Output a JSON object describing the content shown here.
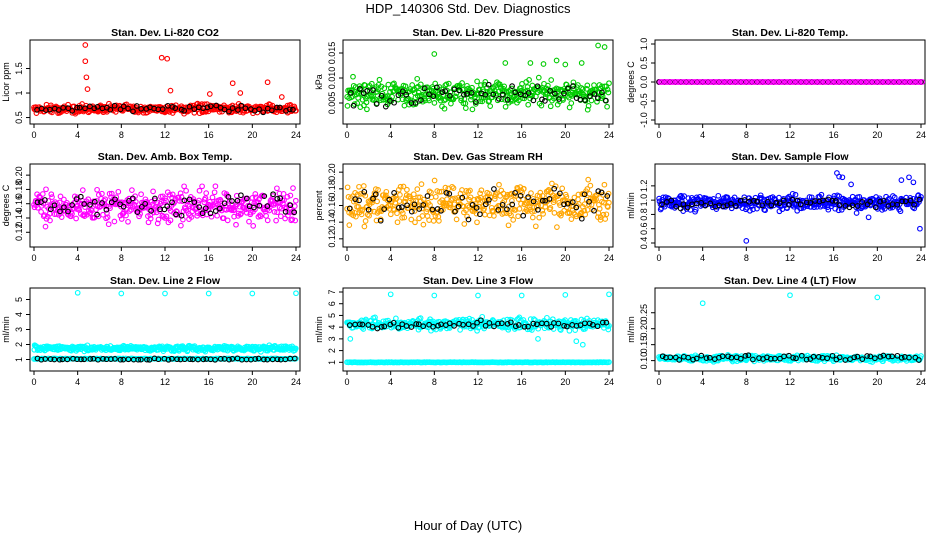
{
  "title": "HDP_140306  Std. Dev. Diagnostics",
  "xlabel": "Hour of Day (UTC)",
  "colors": {
    "secondary": "#000000",
    "axis": "#000000"
  },
  "chart_data": [
    {
      "type": "scatter",
      "title": "Stan. Dev. Li-820 CO2",
      "ylabel": "Licor ppm",
      "color": "#ff0000",
      "xlim": [
        0,
        24
      ],
      "ylim": [
        0.45,
        2.0
      ],
      "yticks": [
        0.5,
        1.0,
        1.5
      ],
      "ytick_labels": [
        "0.5",
        "1",
        "1.5"
      ],
      "xticks": [
        0,
        4,
        8,
        12,
        16,
        20,
        24
      ],
      "band": [
        0.55,
        0.8,
        0.68
      ],
      "secondary_band": [
        0.6,
        0.75,
        0.67
      ],
      "outliers": [
        [
          4.7,
          1.98
        ],
        [
          4.7,
          1.65
        ],
        [
          4.8,
          1.32
        ],
        [
          4.9,
          1.08
        ],
        [
          11.7,
          1.72
        ],
        [
          12.2,
          1.7
        ],
        [
          12.5,
          1.05
        ],
        [
          18.2,
          1.2
        ],
        [
          18.9,
          1.0
        ],
        [
          21.4,
          1.22
        ],
        [
          16.1,
          0.98
        ],
        [
          22.7,
          0.92
        ]
      ]
    },
    {
      "type": "scatter",
      "title": "Stan. Dev. Li-820 Pressure",
      "ylabel": "kPa",
      "color": "#00cc00",
      "xlim": [
        0,
        24
      ],
      "ylim": [
        0.0016,
        0.0168
      ],
      "yticks": [
        0.005,
        0.01,
        0.015
      ],
      "ytick_labels": [
        "0.005",
        "0.010",
        "0.015"
      ],
      "xticks": [
        0,
        4,
        8,
        12,
        16,
        20,
        24
      ],
      "band": [
        0.003,
        0.0105,
        0.0068
      ],
      "secondary_band": [
        0.004,
        0.009,
        0.0065
      ],
      "outliers": [
        [
          8.0,
          0.0148
        ],
        [
          23.0,
          0.0165
        ],
        [
          23.6,
          0.0162
        ],
        [
          14.5,
          0.013
        ],
        [
          16.8,
          0.013
        ],
        [
          18.0,
          0.0128
        ],
        [
          20.0,
          0.0127
        ],
        [
          21.5,
          0.013
        ],
        [
          19.2,
          0.0135
        ]
      ]
    },
    {
      "type": "scatter",
      "title": "Stan. Dev. Li-820 Temp.",
      "ylabel": "degrees C",
      "color": "#ff00ff",
      "xlim": [
        0,
        24
      ],
      "ylim": [
        -1.0,
        1.0
      ],
      "yticks": [
        -1.0,
        -0.5,
        0.0,
        0.5,
        1.0
      ],
      "ytick_labels": [
        "-1.0",
        "-0.5",
        "0.0",
        "0.5",
        "1.0"
      ],
      "xticks": [
        0,
        4,
        8,
        12,
        16,
        20,
        24
      ],
      "constant": 0.0
    },
    {
      "type": "scatter",
      "title": "Stan. Dev. Amb. Box Temp.",
      "ylabel": "degrees C",
      "color": "#ff00ff",
      "xlim": [
        0,
        24
      ],
      "ylim": [
        0.105,
        0.21
      ],
      "yticks": [
        0.12,
        0.14,
        0.16,
        0.18,
        0.2
      ],
      "ytick_labels": [
        "0.12",
        "0.14",
        "0.16",
        "0.18",
        "0.20"
      ],
      "xticks": [
        0,
        4,
        8,
        12,
        16,
        20,
        24
      ],
      "band": [
        0.125,
        0.19,
        0.155
      ],
      "secondary_band": [
        0.14,
        0.175,
        0.157
      ],
      "outliers": []
    },
    {
      "type": "scatter",
      "title": "Stan. Dev. Gas Stream RH",
      "ylabel": "percent",
      "color": "#ffa500",
      "xlim": [
        0,
        24
      ],
      "ylim": [
        0.115,
        0.205
      ],
      "yticks": [
        0.12,
        0.14,
        0.16,
        0.18,
        0.2
      ],
      "ytick_labels": [
        "0.12",
        "0.14",
        "0.16",
        "0.18",
        "0.20"
      ],
      "xticks": [
        0,
        4,
        8,
        12,
        16,
        20,
        24
      ],
      "band": [
        0.13,
        0.195,
        0.163
      ],
      "secondary_band": [
        0.14,
        0.185,
        0.162
      ],
      "outliers": []
    },
    {
      "type": "scatter",
      "title": "Stan. Dev. Sample Flow",
      "ylabel": "ml/min",
      "color": "#0000ff",
      "xlim": [
        0,
        24
      ],
      "ylim": [
        0.4,
        1.45
      ],
      "yticks": [
        0.4,
        0.6,
        0.8,
        1.0,
        1.2
      ],
      "ytick_labels": [
        "0.4",
        "0.6",
        "0.8",
        "1.0",
        "1.2"
      ],
      "xticks": [
        0,
        4,
        8,
        12,
        16,
        20,
        24
      ],
      "band": [
        0.82,
        1.12,
        0.96
      ],
      "secondary_band": [
        0.88,
        1.02,
        0.95
      ],
      "outliers": [
        [
          8.0,
          0.43
        ],
        [
          23.9,
          0.6
        ],
        [
          16.3,
          1.38
        ],
        [
          16.5,
          1.33
        ],
        [
          16.8,
          1.32
        ],
        [
          17.6,
          1.22
        ],
        [
          22.2,
          1.28
        ],
        [
          22.9,
          1.32
        ],
        [
          23.3,
          1.25
        ],
        [
          18.1,
          0.82
        ],
        [
          19.2,
          0.76
        ]
      ]
    },
    {
      "type": "scatter",
      "title": "Stan. Dev. Line 2 Flow",
      "ylabel": "ml/min",
      "color": "#00ffff",
      "xlim": [
        0,
        24
      ],
      "ylim": [
        0.5,
        5.5
      ],
      "yticks": [
        1,
        2,
        3,
        4,
        5
      ],
      "ytick_labels": [
        "1",
        "2",
        "3",
        "4",
        "5"
      ],
      "xticks": [
        0,
        4,
        8,
        12,
        16,
        20,
        24
      ],
      "band": [
        1.5,
        2.0,
        1.75
      ],
      "lower_line": 1.05,
      "secondary_band": [
        0.97,
        1.08,
        1.02
      ],
      "outliers": [
        [
          4.0,
          5.45
        ],
        [
          8.0,
          5.4
        ],
        [
          12.0,
          5.4
        ],
        [
          16.0,
          5.4
        ],
        [
          20.0,
          5.4
        ],
        [
          24.0,
          5.42
        ]
      ]
    },
    {
      "type": "scatter",
      "title": "Stan. Dev. Line 3 Flow",
      "ylabel": "ml/min",
      "color": "#00ffff",
      "xlim": [
        0,
        24
      ],
      "ylim": [
        0.6,
        7.0
      ],
      "yticks": [
        1,
        2,
        3,
        4,
        5,
        6,
        7
      ],
      "ytick_labels": [
        "1",
        "2",
        "3",
        "4",
        "5",
        "6",
        "7"
      ],
      "xticks": [
        0,
        4,
        8,
        12,
        16,
        20,
        24
      ],
      "band": [
        3.6,
        5.0,
        4.2
      ],
      "lower_line": 1.0,
      "secondary_band": [
        3.8,
        4.6,
        4.2
      ],
      "outliers": [
        [
          4.0,
          6.8
        ],
        [
          8.0,
          6.7
        ],
        [
          12.0,
          6.7
        ],
        [
          16.0,
          6.7
        ],
        [
          20.0,
          6.75
        ],
        [
          24.0,
          6.8
        ],
        [
          0.3,
          3.0
        ],
        [
          17.5,
          3.0
        ],
        [
          21.6,
          2.5
        ],
        [
          21.0,
          2.8
        ]
      ]
    },
    {
      "type": "scatter",
      "title": "Stan. Dev. Line 4 (LT) Flow",
      "ylabel": "ml/min",
      "color": "#00ffff",
      "xlim": [
        0,
        24
      ],
      "ylim": [
        0.08,
        0.315
      ],
      "yticks": [
        0.1,
        0.15,
        0.2,
        0.25
      ],
      "ytick_labels": [
        "0.10",
        "0.15",
        "0.20",
        "0.25"
      ],
      "xticks": [
        0,
        4,
        8,
        12,
        16,
        20,
        24
      ],
      "band": [
        0.095,
        0.12,
        0.107
      ],
      "secondary_band": [
        0.1,
        0.12,
        0.108
      ],
      "outliers": [
        [
          4.0,
          0.28
        ],
        [
          12.0,
          0.305
        ],
        [
          20.0,
          0.298
        ]
      ]
    }
  ]
}
